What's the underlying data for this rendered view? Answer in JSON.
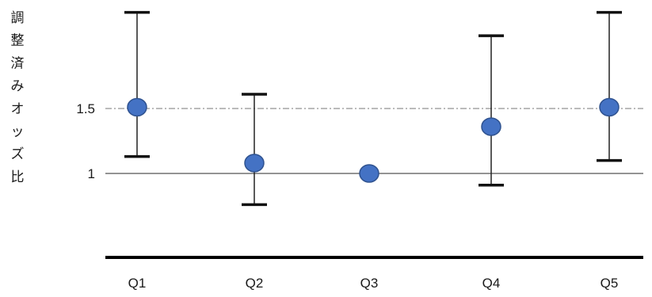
{
  "chart_data": {
    "type": "scatter",
    "ylabel": "調整済みオッズ比",
    "categories": [
      "Q1",
      "Q2",
      "Q3",
      "Q4",
      "Q5"
    ],
    "y_ticks": [
      {
        "value": 1,
        "label": "1"
      },
      {
        "value": 1.5,
        "label": "1.5"
      }
    ],
    "reference_lines": [
      {
        "value": 1,
        "style": "solid"
      },
      {
        "value": 1.5,
        "style": "dash-dot"
      }
    ],
    "series": [
      {
        "values": [
          1.51,
          1.08,
          1.0,
          1.36,
          1.51
        ],
        "lower": [
          1.13,
          0.76,
          null,
          0.91,
          1.1
        ],
        "upper": [
          2.24,
          1.61,
          null,
          2.06,
          2.24
        ],
        "color": "#4472C4"
      }
    ],
    "ylim": [
      0.32,
      2.24
    ],
    "grid": false,
    "legend": "none"
  }
}
